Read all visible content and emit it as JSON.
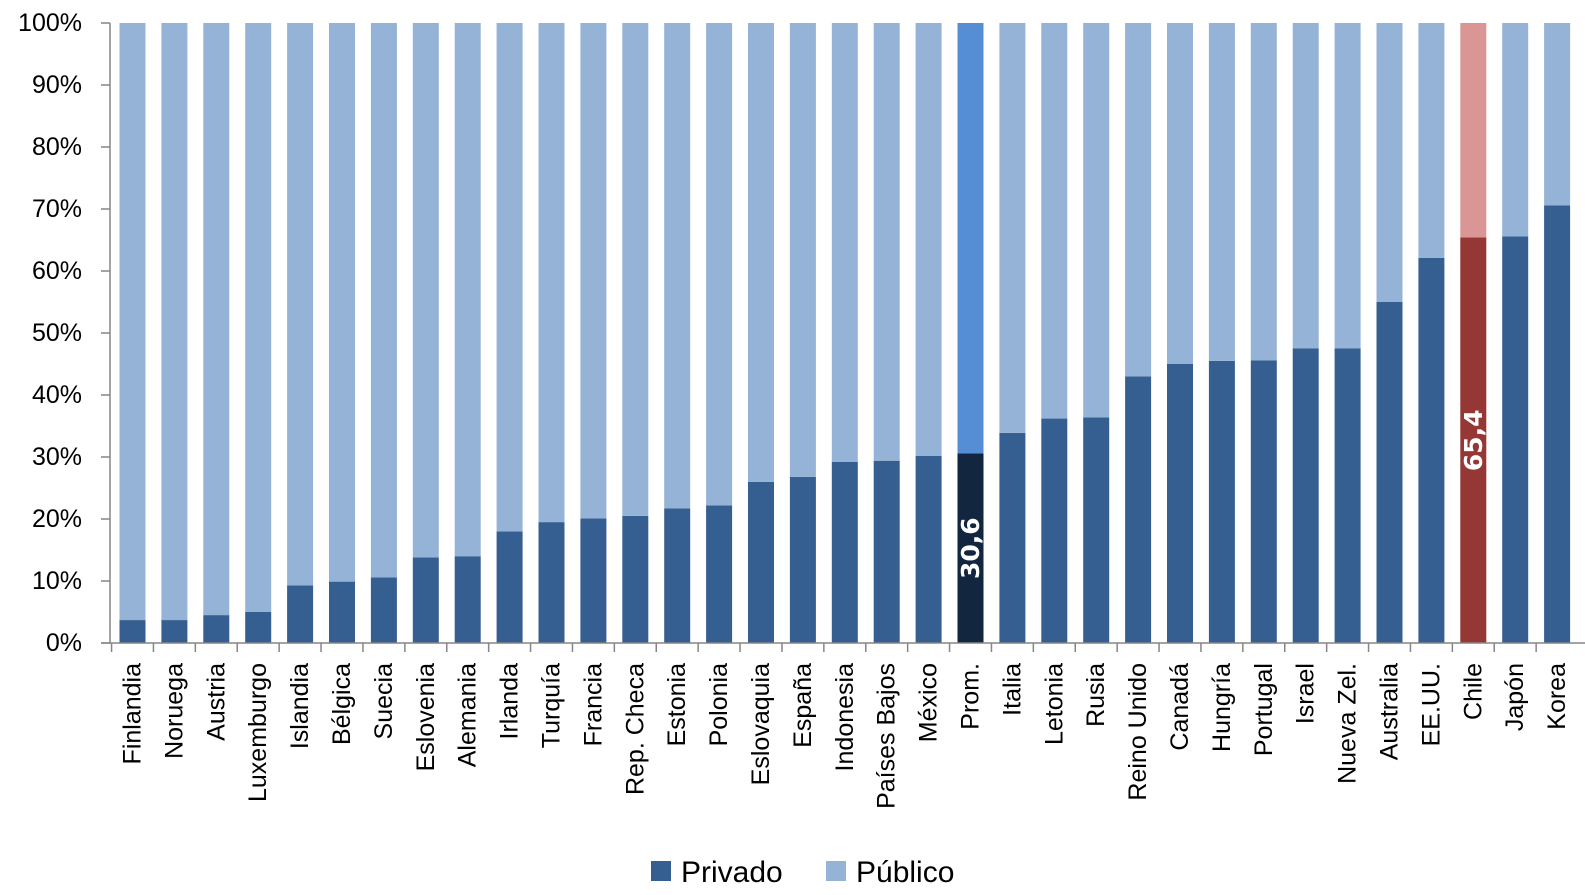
{
  "chart_data": {
    "type": "bar",
    "stacked": true,
    "percent_stacked": true,
    "categories": [
      "Finlandia",
      "Noruega",
      "Austria",
      "Luxemburgo",
      "Islandia",
      "Bélgica",
      "Suecia",
      "Eslovenia",
      "Alemania",
      "Irlanda",
      "Turquía",
      "Francia",
      "Rep. Checa",
      "Estonia",
      "Polonia",
      "Eslovaquia",
      "España",
      "Indonesia",
      "Países Bajos",
      "México",
      "Prom.",
      "Italia",
      "Letonia",
      "Rusia",
      "Reino Unido",
      "Canadá",
      "Hungría",
      "Portugal",
      "Israel",
      "Nueva Zel.",
      "Australia",
      "EE.UU.",
      "Chile",
      "Japón",
      "Korea"
    ],
    "series": [
      {
        "name": "Privado",
        "color": "#365F91",
        "values": [
          3.7,
          3.7,
          4.5,
          5.0,
          9.3,
          9.9,
          10.6,
          13.8,
          14.0,
          18.0,
          19.5,
          20.1,
          20.5,
          21.7,
          22.2,
          26.0,
          26.8,
          29.2,
          29.4,
          30.2,
          30.6,
          33.9,
          36.2,
          36.4,
          43.0,
          45.0,
          45.5,
          45.6,
          47.5,
          47.5,
          55.0,
          62.1,
          65.4,
          65.6,
          70.6
        ]
      },
      {
        "name": "Público",
        "color": "#95B3D7",
        "values": [
          96.3,
          96.3,
          95.5,
          95.0,
          90.7,
          90.1,
          89.4,
          86.2,
          86.0,
          82.0,
          80.5,
          79.9,
          79.5,
          78.3,
          77.8,
          74.0,
          73.2,
          70.8,
          70.6,
          69.8,
          69.4,
          66.1,
          63.8,
          63.6,
          57.0,
          55.0,
          54.5,
          54.4,
          52.5,
          52.5,
          45.0,
          37.9,
          34.6,
          34.4,
          29.4
        ]
      }
    ],
    "highlights": [
      {
        "category": "Prom.",
        "private_color": "#12263F",
        "public_color": "#558ED5",
        "label": "30,6"
      },
      {
        "category": "Chile",
        "private_color": "#953735",
        "public_color": "#D99694",
        "label": "65,4"
      }
    ],
    "yticks": [
      "0%",
      "10%",
      "20%",
      "30%",
      "40%",
      "50%",
      "60%",
      "70%",
      "80%",
      "90%",
      "100%"
    ],
    "ylim": [
      0,
      100
    ],
    "grid": false,
    "legend_position": "bottom-center",
    "title": "",
    "xlabel": "",
    "ylabel": ""
  }
}
